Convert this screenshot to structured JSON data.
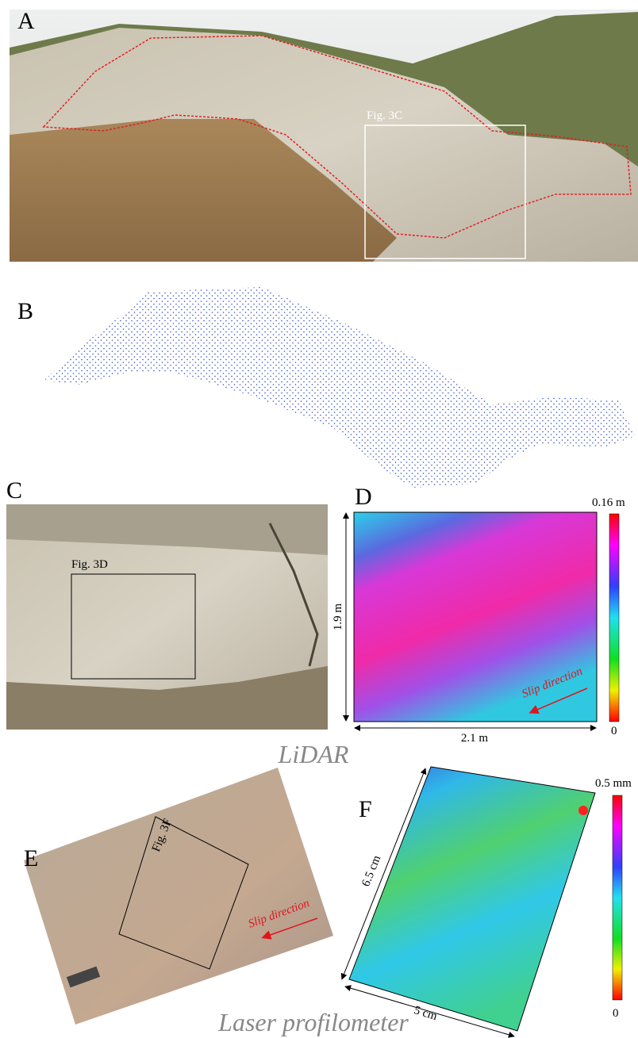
{
  "panels": {
    "A": {
      "label": "A",
      "box_label": "Fig. 3C"
    },
    "B": {
      "label": "B"
    },
    "C": {
      "label": "C",
      "box_label": "Fig. 3D"
    },
    "D": {
      "label": "D",
      "colorbar_max": "0.16 m",
      "colorbar_min": "0",
      "height": "1.9 m",
      "width": "2.1 m",
      "arrow": "Slip direction"
    },
    "E": {
      "label": "E",
      "box_label": "Fig. 3F",
      "arrow": "Slip direction"
    },
    "F": {
      "label": "F",
      "colorbar_max": "0.5 mm",
      "colorbar_min": "0",
      "height": "6.5 cm",
      "width": "5 cm"
    }
  },
  "captions": {
    "lidar": "LiDAR",
    "profilometer": "Laser profilometer"
  }
}
